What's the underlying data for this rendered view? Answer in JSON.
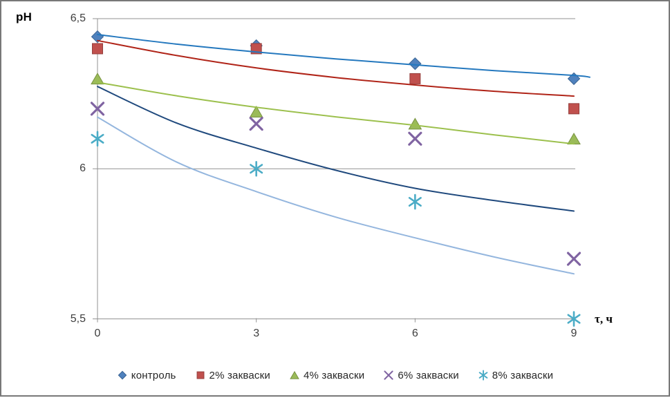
{
  "frame": {
    "border_color": "#787878",
    "background": "#ffffff"
  },
  "chart_data": {
    "type": "scatter",
    "title": "",
    "y_label": "pH",
    "x_label": "τ, ч",
    "xlim": [
      0,
      9
    ],
    "ylim": [
      5.5,
      6.5
    ],
    "x_tick_values": [
      0,
      3,
      6,
      9
    ],
    "x_tick_labels": [
      "0",
      "3",
      "6",
      "9"
    ],
    "y_tick_values": [
      6.5,
      6.0,
      5.5
    ],
    "y_tick_labels": [
      "6,5",
      "6",
      "5,5"
    ],
    "gridlines": "horizontal",
    "axis_color": "#929292",
    "legend_position": "bottom",
    "x": [
      0,
      3,
      6,
      9
    ],
    "series": [
      {
        "name": "контроль",
        "marker": "diamond",
        "marker_color": "#4F81BD",
        "marker_edge": "#3A6493",
        "trend_color": "#2478BE",
        "values": [
          6.44,
          6.41,
          6.35,
          6.3
        ],
        "trend": [
          [
            0,
            6.447
          ],
          [
            1.5,
            6.415
          ],
          [
            3,
            6.389
          ],
          [
            4.5,
            6.366
          ],
          [
            6,
            6.346
          ],
          [
            7.5,
            6.327
          ],
          [
            9,
            6.311
          ],
          [
            9.3,
            6.305
          ]
        ]
      },
      {
        "name": "2% закваски",
        "marker": "square",
        "marker_color": "#C0504D",
        "marker_edge": "#94403E",
        "trend_color": "#B02418",
        "values": [
          6.4,
          6.4,
          6.3,
          6.2
        ],
        "trend": [
          [
            0,
            6.427
          ],
          [
            1.5,
            6.377
          ],
          [
            3,
            6.336
          ],
          [
            4.5,
            6.304
          ],
          [
            6,
            6.279
          ],
          [
            7.5,
            6.258
          ],
          [
            9,
            6.242
          ]
        ]
      },
      {
        "name": "4% закваски",
        "marker": "triangle",
        "marker_color": "#9BBB59",
        "marker_edge": "#77923F",
        "trend_color": "#9CC04D",
        "values": [
          6.3,
          6.19,
          6.15,
          6.1
        ],
        "trend": [
          [
            0,
            6.288
          ],
          [
            1.5,
            6.243
          ],
          [
            3,
            6.205
          ],
          [
            4.5,
            6.173
          ],
          [
            6,
            6.145
          ],
          [
            7.5,
            6.113
          ],
          [
            9,
            6.083
          ]
        ]
      },
      {
        "name": "6% закваски",
        "marker": "x",
        "marker_color": "#8064A2",
        "marker_edge": "#8064A2",
        "trend_color": "#1F497D",
        "values": [
          6.2,
          6.15,
          6.1,
          5.7
        ],
        "trend": [
          [
            0,
            6.274
          ],
          [
            1.5,
            6.152
          ],
          [
            3,
            6.069
          ],
          [
            4.5,
            5.995
          ],
          [
            6,
            5.935
          ],
          [
            7.5,
            5.894
          ],
          [
            9,
            5.859
          ]
        ]
      },
      {
        "name": "8% закваски",
        "marker": "asterisk",
        "marker_color": "#4BACC6",
        "marker_edge": "#4BACC6",
        "trend_color": "#94B6DE",
        "values": [
          6.1,
          6.0,
          5.89,
          5.5
        ],
        "trend": [
          [
            0,
            6.172
          ],
          [
            1.5,
            6.022
          ],
          [
            3,
            5.924
          ],
          [
            4.5,
            5.839
          ],
          [
            6,
            5.77
          ],
          [
            7.5,
            5.706
          ],
          [
            9,
            5.65
          ]
        ]
      }
    ]
  }
}
